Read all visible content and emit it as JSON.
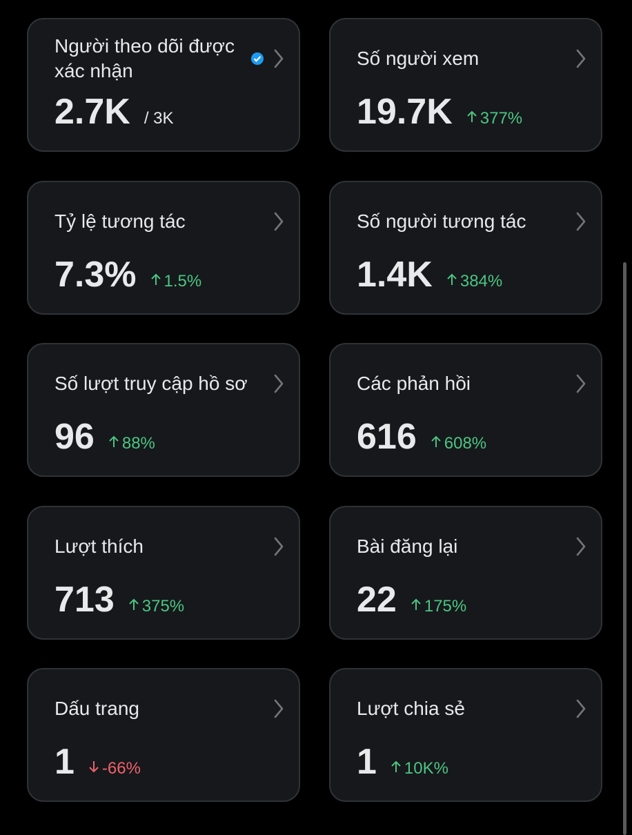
{
  "cards": [
    {
      "label": "Người theo dõi được xác nhận",
      "value": "2.7K",
      "suffix": "/ 3K",
      "verified": true
    },
    {
      "label": "Số người xem",
      "value": "19.7K",
      "change": "377%",
      "trend": "up"
    },
    {
      "label": "Tỷ lệ tương tác",
      "value": "7.3%",
      "change": "1.5%",
      "trend": "up"
    },
    {
      "label": "Số người tương tác",
      "value": "1.4K",
      "change": "384%",
      "trend": "up"
    },
    {
      "label": "Số lượt truy cập hồ sơ",
      "value": "96",
      "change": "88%",
      "trend": "up"
    },
    {
      "label": "Các phản hồi",
      "value": "616",
      "change": "608%",
      "trend": "up"
    },
    {
      "label": "Lượt thích",
      "value": "713",
      "change": "375%",
      "trend": "up"
    },
    {
      "label": "Bài đăng lại",
      "value": "22",
      "change": "175%",
      "trend": "up"
    },
    {
      "label": "Dấu trang",
      "value": "1",
      "change": "-66%",
      "trend": "down"
    },
    {
      "label": "Lượt chia sẻ",
      "value": "1",
      "change": "10K%",
      "trend": "up"
    }
  ]
}
